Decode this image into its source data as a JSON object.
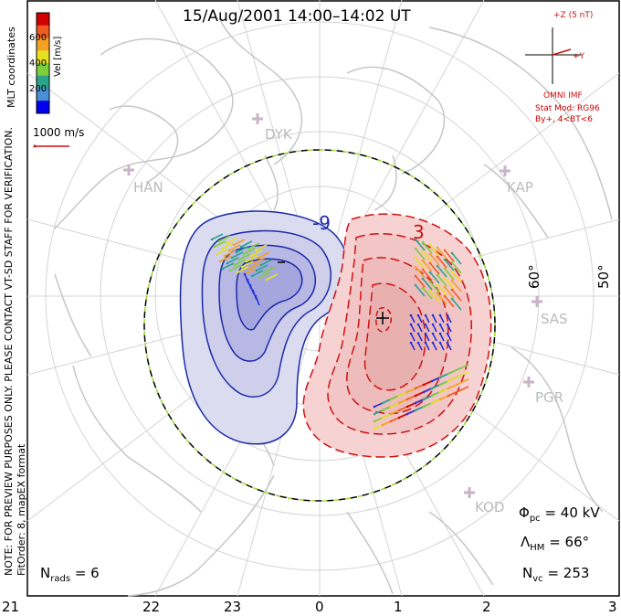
{
  "title": "15/Aug/2001 14:00–14:02 UT",
  "scale": {
    "label": "Vel [m/s]",
    "ticks": [
      "200",
      "400",
      "600"
    ],
    "colors": [
      "#0000ee",
      "#4b8fd6",
      "#2aa58c",
      "#7ccf3a",
      "#e8e020",
      "#f4a022",
      "#f05a20",
      "#d00000"
    ]
  },
  "mlt_label": "MLT coordinates",
  "vector_ref": "1000 m/s",
  "note_line1": "NOTE: FOR PREVIEW PURPOSES ONLY. PLEASE CONTACT VT-SD STAFF FOR VERIFICATION.",
  "note_line2": "FitOrder: 8, mapEX format",
  "imf": {
    "z_label": "+Z (5 nT)",
    "y_label": "+Y",
    "source": "OMNI IMF"
  },
  "stat_model": {
    "line1": "Stat Mod: RG96",
    "line2": "By+, 4<BT<6"
  },
  "sites": [
    "DYK",
    "HAN",
    "KAP",
    "SAS",
    "PGR",
    "KOD"
  ],
  "latitudes": [
    "60°",
    "50°"
  ],
  "hours": [
    "21",
    "22",
    "23",
    "0",
    "1",
    "2",
    "3"
  ],
  "contours": {
    "neg_label": "-9",
    "pos_label": "3"
  },
  "stats": {
    "phi_label": "Φ",
    "phi_sub": "pc",
    "phi_value": "= 40 kV",
    "lam_label": "Λ",
    "lam_sub": "HM",
    "lam_value": "= 66°",
    "nvc_label": "N",
    "nvc_sub": "vc",
    "nvc_value": "= 253",
    "nrads_label": "N",
    "nrads_sub": "rads",
    "nrads_value": "= 6"
  },
  "colors": {
    "positive": "#d01010",
    "negative": "#1a2aa8",
    "land": "#c8c8c8",
    "grid": "#d0d0d0"
  }
}
